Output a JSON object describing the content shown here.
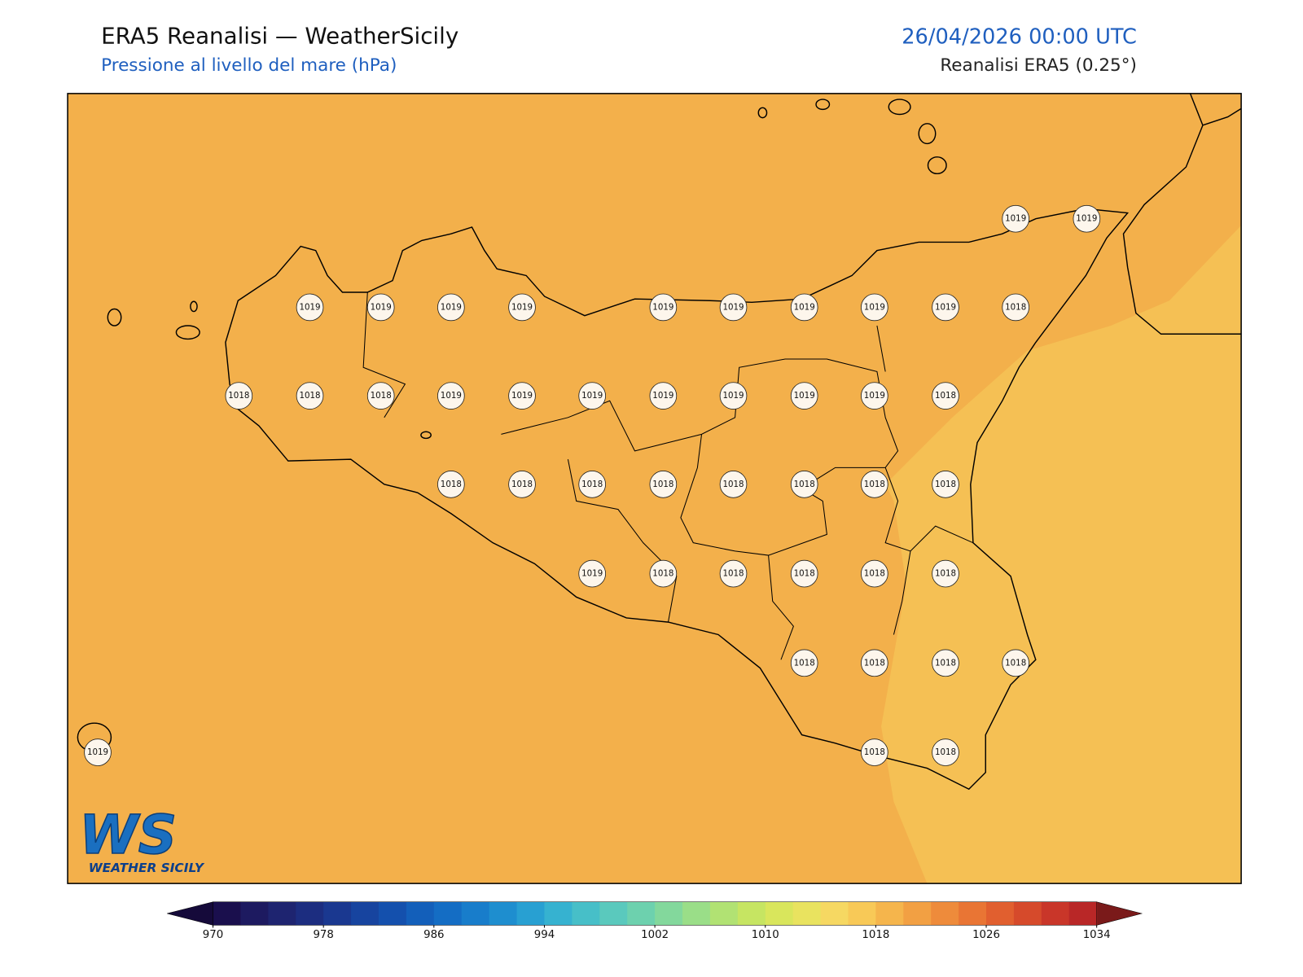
{
  "header": {
    "title": "ERA5 Reanalisi — WeatherSicily",
    "subtitle": "Pressione al livello del mare (hPa)",
    "datetime": "26/04/2026 00:00 UTC",
    "source": "Reanalisi ERA5 (0.25°)"
  },
  "stations": [
    1019,
    1019,
    1019,
    1019,
    1019,
    1019,
    1019,
    1019,
    1019,
    1019,
    1019,
    1018,
    1018,
    1018,
    1018,
    1019,
    1019,
    1019,
    1019,
    1019,
    1019,
    1019,
    1018,
    1018,
    1018,
    1018,
    1018,
    1018,
    1018,
    1018,
    1018,
    1019,
    1018,
    1018,
    1018,
    1018,
    1018,
    1018,
    1018,
    1018,
    1018,
    1019,
    1018,
    1018
  ],
  "colorbar": {
    "ticks": [
      970,
      978,
      986,
      994,
      1002,
      1010,
      1018,
      1026,
      1034
    ],
    "colors": [
      "#1a0f4d",
      "#1d1a60",
      "#1e2470",
      "#1c2d80",
      "#1a3890",
      "#17449f",
      "#1450ad",
      "#135fba",
      "#146dc4",
      "#187dcb",
      "#1e8ecf",
      "#28a0d2",
      "#36b2d0",
      "#47bfc8",
      "#5ac9bd",
      "#6dd1ae",
      "#83d89c",
      "#9ade88",
      "#b1e273",
      "#c6e562",
      "#d9e65c",
      "#e9e35f",
      "#f6d862",
      "#f8c957",
      "#f5b54c",
      "#f2a043",
      "#ee8b3b",
      "#e97534",
      "#e15f2f",
      "#d64a2b",
      "#c93629",
      "#b92727"
    ],
    "under": "#150a3a",
    "over": "#7a1a1a"
  },
  "logo": {
    "initials": "WS",
    "name": "WEATHER SICILY"
  }
}
